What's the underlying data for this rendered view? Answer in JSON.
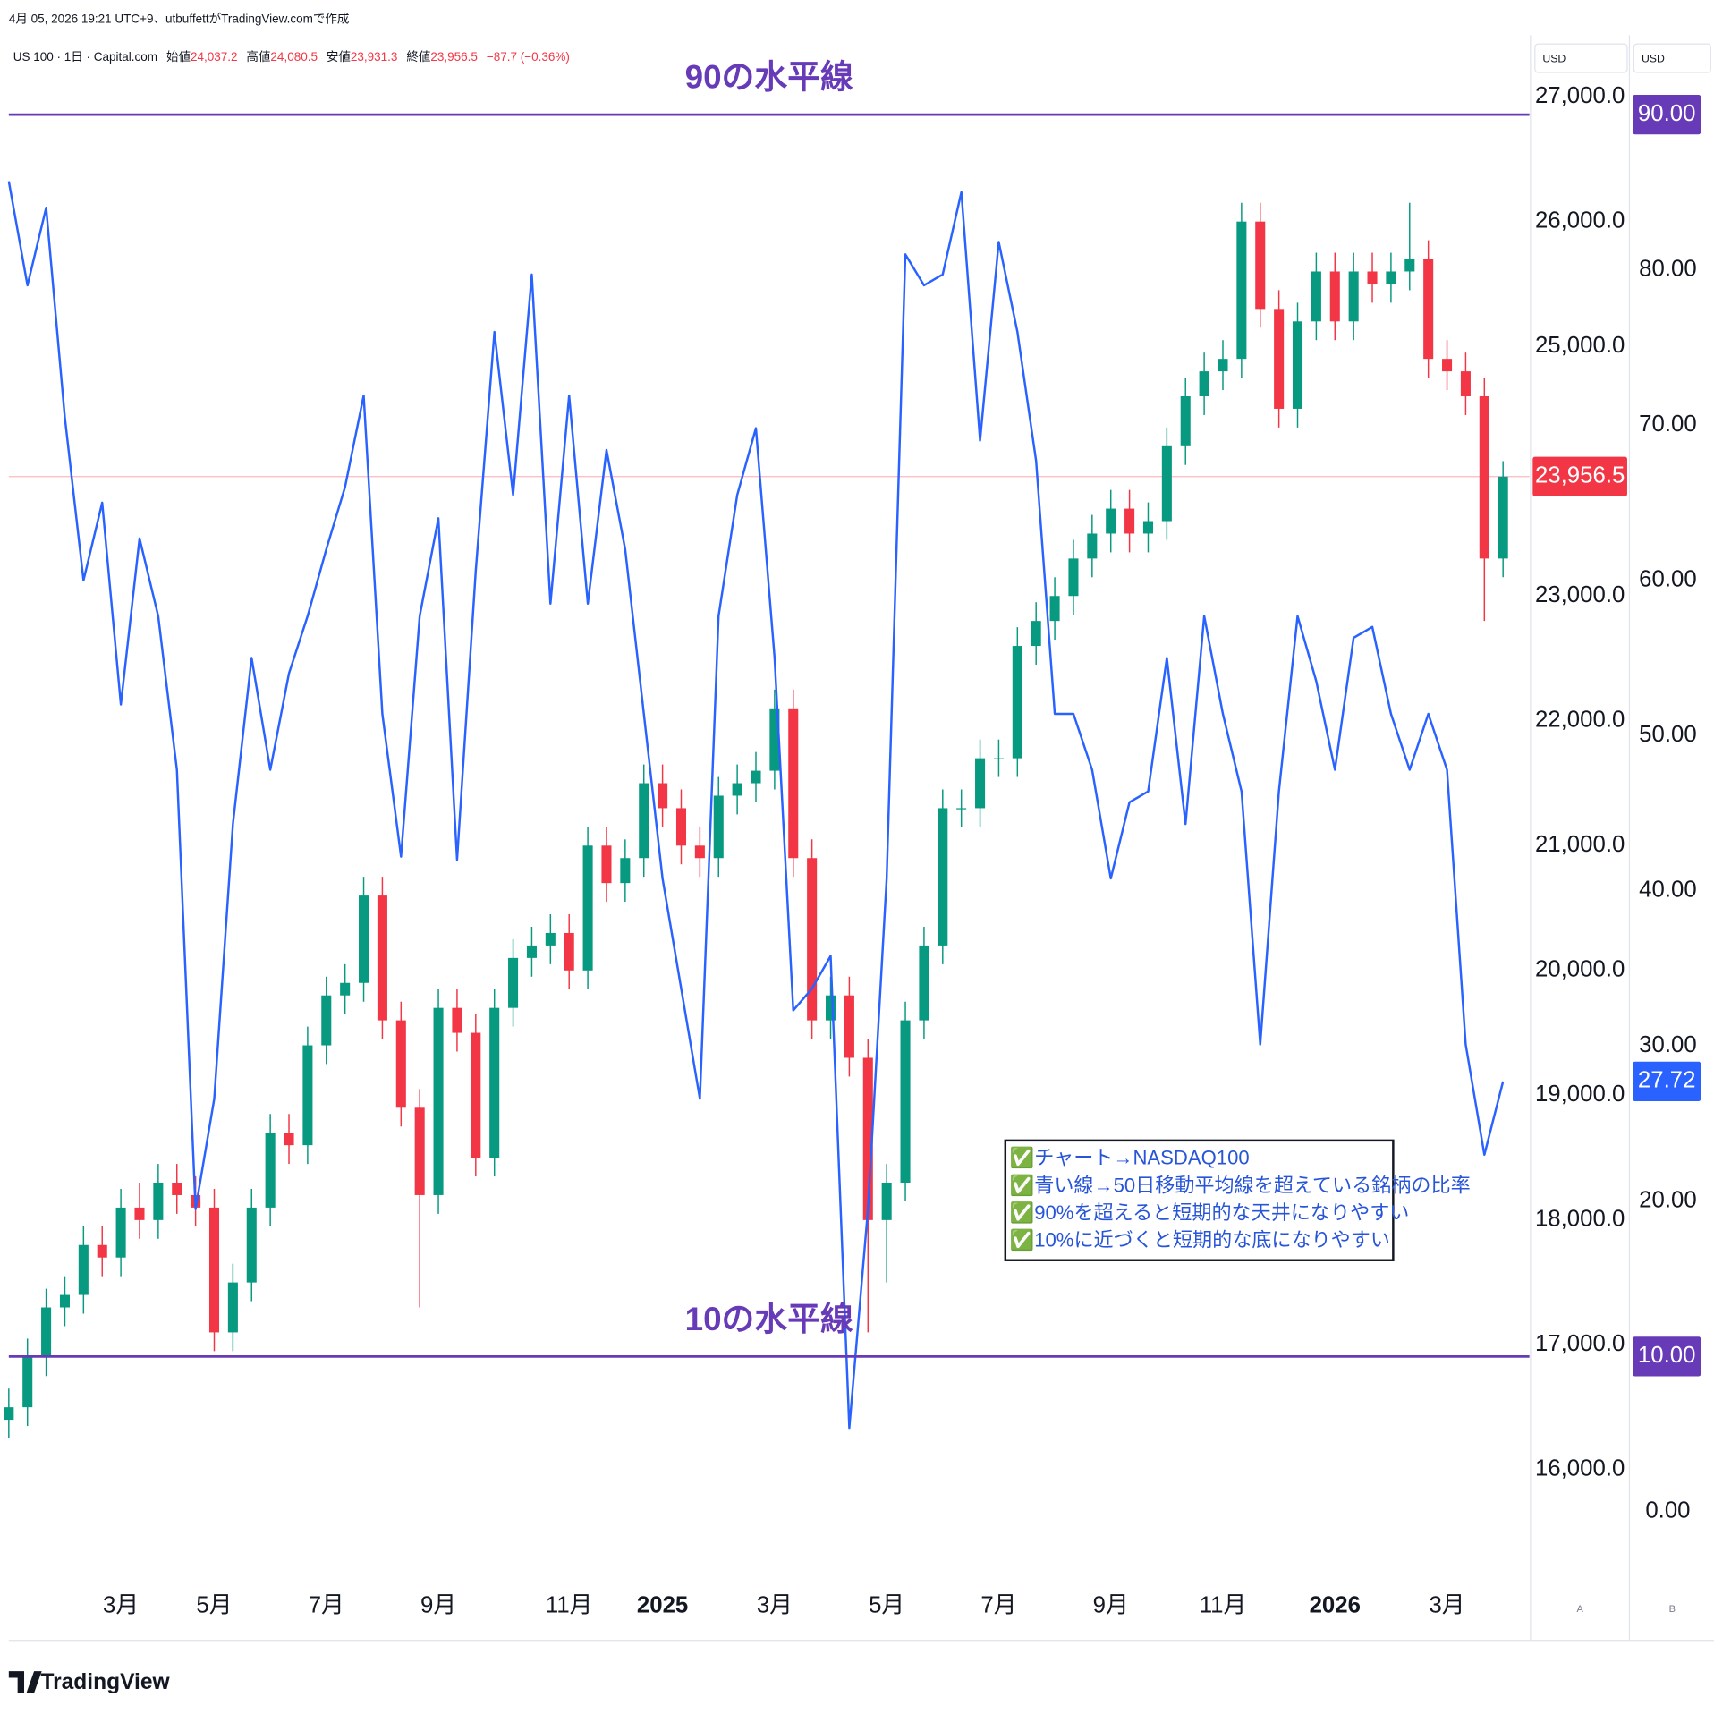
{
  "header": {
    "created": "4月 05, 2026 19:21 UTC+9、utbuffettがTradingView.comで作成",
    "symbol": "US 100 · 1日 · Capital.com",
    "ohlc": [
      {
        "label": "始値",
        "value": "24,037.2"
      },
      {
        "label": "高値",
        "value": "24,080.5"
      },
      {
        "label": "安値",
        "value": "23,931.3"
      },
      {
        "label": "終値",
        "value": "23,956.5"
      }
    ],
    "change": "−87.7 (−0.36%)",
    "currency": [
      "USD",
      "USD"
    ],
    "scales": [
      "A",
      "B"
    ]
  },
  "footer": {
    "brand": "TradingView"
  },
  "chart_data": {
    "type": "candlestick",
    "categories": [
      null,
      null,
      null,
      null,
      null,
      null,
      "3月",
      null,
      null,
      null,
      null,
      "5月",
      null,
      null,
      null,
      null,
      null,
      "7月",
      null,
      null,
      null,
      null,
      null,
      "9月",
      null,
      null,
      null,
      null,
      null,
      null,
      "11月",
      null,
      null,
      null,
      null,
      "2025",
      null,
      null,
      null,
      null,
      null,
      "3月",
      null,
      null,
      null,
      null,
      null,
      "5月",
      null,
      null,
      null,
      null,
      null,
      "7月",
      null,
      null,
      null,
      null,
      null,
      "9月",
      null,
      null,
      null,
      null,
      null,
      "11月",
      null,
      null,
      null,
      null,
      null,
      "2026",
      null,
      null,
      null,
      null,
      null,
      "3月",
      null,
      null,
      null
    ],
    "series": [
      {
        "type": "candlestick",
        "up_color": "#089981",
        "down_color": "#f23645",
        "open": [
          16400,
          16500,
          16900,
          17300,
          17400,
          17800,
          17700,
          18100,
          18000,
          18300,
          18200,
          18100,
          17100,
          17500,
          18100,
          18700,
          18600,
          19400,
          19800,
          19900,
          20600,
          19600,
          18900,
          18200,
          19700,
          19500,
          18500,
          19700,
          20100,
          20200,
          20300,
          20000,
          21000,
          20700,
          20900,
          21500,
          21300,
          21000,
          20900,
          21400,
          21500,
          21600,
          22100,
          20900,
          19600,
          19800,
          19300,
          18000,
          18300,
          19600,
          20200,
          21300,
          21300,
          21700,
          21700,
          22600,
          22800,
          23000,
          23300,
          23500,
          23700,
          23500,
          23600,
          24200,
          24600,
          24800,
          24900,
          26000,
          25300,
          24500,
          25200,
          25600,
          25200,
          25600,
          25500,
          25600,
          25700,
          24900,
          24800,
          24600,
          23300
        ],
        "high": [
          16650,
          17050,
          17450,
          17550,
          17950,
          17950,
          18250,
          18300,
          18450,
          18450,
          18350,
          18250,
          17650,
          18250,
          18850,
          18850,
          19550,
          19950,
          20050,
          20750,
          20750,
          19750,
          19050,
          19850,
          19850,
          19650,
          19850,
          20250,
          20350,
          20450,
          20450,
          21150,
          21150,
          21050,
          21650,
          21650,
          21450,
          21150,
          21550,
          21650,
          21750,
          22250,
          22250,
          21050,
          19950,
          19950,
          19450,
          18450,
          19750,
          20350,
          21450,
          21450,
          21850,
          21850,
          22750,
          22950,
          23150,
          23450,
          23650,
          23850,
          23850,
          23750,
          24350,
          24750,
          24950,
          25050,
          26150,
          26150,
          25450,
          25350,
          25750,
          25750,
          25750,
          25750,
          25750,
          26150,
          25850,
          25050,
          24950,
          24750,
          24080.5
        ],
        "low": [
          16250,
          16350,
          16750,
          17150,
          17250,
          17550,
          17550,
          17850,
          17850,
          18050,
          17950,
          16950,
          16950,
          17350,
          17950,
          18450,
          18450,
          19250,
          19650,
          19750,
          19450,
          18750,
          17300,
          18050,
          19350,
          18350,
          18350,
          19550,
          19950,
          20050,
          19850,
          19850,
          20550,
          20550,
          20750,
          21150,
          20850,
          20750,
          20750,
          21250,
          21350,
          21450,
          20750,
          19450,
          19450,
          19150,
          17100,
          17500,
          18150,
          19450,
          20050,
          21150,
          21150,
          21550,
          21550,
          22450,
          22650,
          22850,
          23150,
          23350,
          23350,
          23350,
          23450,
          24050,
          24450,
          24650,
          24750,
          25150,
          24350,
          24350,
          25050,
          25050,
          25050,
          25350,
          25350,
          25450,
          24750,
          24650,
          24450,
          22800,
          23150
        ],
        "close": [
          16500,
          16900,
          17300,
          17400,
          17800,
          17700,
          18100,
          18000,
          18300,
          18200,
          18100,
          17100,
          17500,
          18100,
          18700,
          18600,
          19400,
          19800,
          19900,
          20600,
          19600,
          18900,
          18200,
          19700,
          19500,
          18500,
          19700,
          20100,
          20200,
          20300,
          20000,
          21000,
          20700,
          20900,
          21500,
          21300,
          21000,
          20900,
          21400,
          21500,
          21600,
          22100,
          20900,
          19600,
          19800,
          19300,
          18000,
          18300,
          19600,
          20200,
          21300,
          21300,
          21700,
          21700,
          22600,
          22800,
          23000,
          23300,
          23500,
          23700,
          23500,
          23600,
          24200,
          24600,
          24800,
          24900,
          26000,
          25300,
          24500,
          25200,
          25600,
          25200,
          25600,
          25500,
          25600,
          25700,
          24900,
          24800,
          24600,
          23300,
          23956.5
        ]
      },
      {
        "type": "line",
        "axis": "y2",
        "color": "#2962ff",
        "values": [
          85.7,
          79,
          84,
          70.5,
          60,
          65,
          52,
          62.7,
          57.7,
          47.8,
          19.5,
          26.6,
          44.3,
          55,
          47.8,
          54,
          57.7,
          62,
          66,
          71.9,
          51.4,
          42.2,
          57.7,
          64,
          42,
          60.6,
          76,
          65.5,
          79.7,
          58.5,
          71.9,
          58.5,
          68.4,
          62,
          51.4,
          40.8,
          33.7,
          26.6,
          57.7,
          65.5,
          69.8,
          55,
          32.3,
          33.7,
          35.8,
          5.4,
          19.5,
          40.8,
          81,
          79,
          79.7,
          85,
          69,
          81.8,
          76,
          67.7,
          51.4,
          51.4,
          47.8,
          40.8,
          45.7,
          46.4,
          55,
          44.3,
          57.7,
          51.4,
          46.4,
          30.1,
          46.4,
          57.7,
          53.5,
          47.8,
          56.3,
          57,
          51.4,
          47.8,
          51.4,
          47.8,
          30.1,
          23,
          27.72
        ]
      }
    ],
    "ylim": [
      15143,
      27423
    ],
    "yticks": [
      {
        "value": 16000,
        "label": "16,000.0"
      },
      {
        "value": 17000,
        "label": "17,000.0"
      },
      {
        "value": 18000,
        "label": "18,000.0"
      },
      {
        "value": 19000,
        "label": "19,000.0"
      },
      {
        "value": 20000,
        "label": "20,000.0"
      },
      {
        "value": 21000,
        "label": "21,000.0"
      },
      {
        "value": 22000,
        "label": "22,000.0"
      },
      {
        "value": 23000,
        "label": "23,000.0"
      },
      {
        "value": 24000,
        "label": "24,000.0"
      },
      {
        "value": 25000,
        "label": "25,000.0"
      },
      {
        "value": 26000,
        "label": "26,000.0"
      },
      {
        "value": 27000,
        "label": "27,000.0"
      }
    ],
    "y2lim": [
      -4.18,
      94.55
    ],
    "y2ticks": [
      {
        "value": 0,
        "label": "0.00"
      },
      {
        "value": 10,
        "label": "10.00"
      },
      {
        "value": 20,
        "label": "20.00"
      },
      {
        "value": 30,
        "label": "30.00"
      },
      {
        "value": 40,
        "label": "40.00"
      },
      {
        "value": 50,
        "label": "50.00"
      },
      {
        "value": 60,
        "label": "60.00"
      },
      {
        "value": 70,
        "label": "70.00"
      },
      {
        "value": 80,
        "label": "80.00"
      }
    ],
    "grid": false,
    "hlines": [
      {
        "value": 90,
        "label": "90.00",
        "text": "90の水平線",
        "color": "#673ab7"
      },
      {
        "value": 10,
        "label": "10.00",
        "text": "10の水平線",
        "color": "#673ab7"
      }
    ],
    "last_price": {
      "value": 23956.5,
      "label": "23,956.5",
      "color": "#f23645"
    },
    "last_ratio": {
      "value": 27.72,
      "label": "27.72",
      "color": "#2962ff"
    },
    "annotation": [
      "✅チャート→NASDAQ100",
      "✅青い線→50日移動平均線を超えている銘柄の比率",
      "✅90%を超えると短期的な天井になりやすい",
      "✅10%に近づくと短期的な底になりやすい"
    ]
  }
}
